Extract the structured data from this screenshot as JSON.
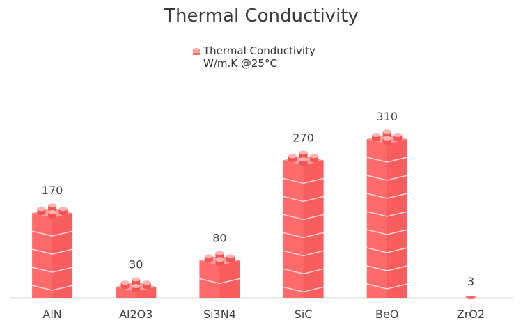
{
  "chart_data": {
    "type": "bar",
    "title": "Thermal Conductivity",
    "categories": [
      "AlN",
      "Al2O3",
      "Si3N4",
      "SiC",
      "BeO",
      "ZrO2"
    ],
    "series": [
      {
        "name": "Thermal Conductivity\nW/m.K @25°C",
        "values": [
          170,
          30,
          80,
          270,
          310,
          3
        ]
      }
    ],
    "data_labels": [
      "170",
      "30",
      "80",
      "270",
      "310",
      "3"
    ],
    "ylim": [
      0,
      310
    ],
    "grid": false,
    "legend_position": "top-center",
    "colors": {
      "bar_front": "#ff6b6b",
      "bar_side": "#f25454",
      "bar_top": "#ff9c9c",
      "stud": "#ffb3b3",
      "line": "#ffd6d6",
      "axis": "#d9d9d9",
      "label": "#404040"
    }
  }
}
